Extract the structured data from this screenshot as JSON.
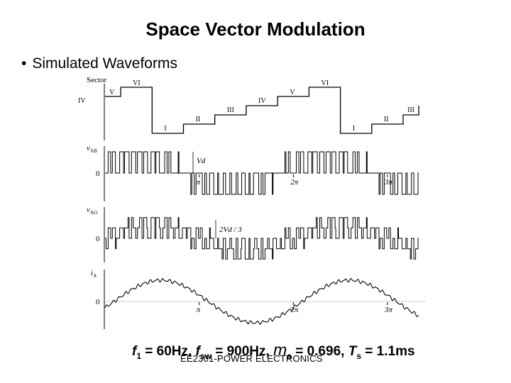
{
  "title": "Space Vector Modulation",
  "bullet": "Simulated Waveforms",
  "bullet_glyph": "•",
  "params": {
    "f1_label": "f",
    "f1_sub": "1",
    "f1_value": " = 60Hz, ",
    "fsw_label": "f",
    "fsw_sub": "sw",
    "fsw_value": " = 900Hz, ",
    "ma_label": "m",
    "ma_sub": "a",
    "ma_value": " = 0.696, ",
    "ts_label": "T",
    "ts_sub": "s",
    "ts_value": " = 1.1ms"
  },
  "footer": "EE2301-POWER ELECTRONICS",
  "chart_data": [
    {
      "type": "line",
      "title": "Sector",
      "ylabel": "Sector",
      "x_unit": "rad",
      "xlim": [
        0,
        10.47
      ],
      "sector_labels": [
        "V",
        "VI",
        "I",
        "II",
        "III",
        "IV",
        "V",
        "VI",
        "I",
        "II",
        "III",
        "IV"
      ],
      "x_breaks": [
        0,
        0.524,
        1.571,
        2.618,
        3.665,
        4.712,
        5.76,
        6.807,
        7.854,
        8.901,
        9.948,
        10.47
      ],
      "levels": [
        5,
        6,
        1,
        2,
        3,
        4,
        5,
        6,
        1,
        2,
        3,
        4
      ],
      "ylim": [
        0.5,
        6.5
      ]
    },
    {
      "type": "line",
      "ylabel": "vAB",
      "zero_label": "0",
      "annotation": "Vd",
      "xticks": [
        "π",
        "2π",
        "3π"
      ],
      "xtick_values": [
        3.1416,
        6.2832,
        9.4248
      ],
      "levels": [
        -1,
        0,
        1
      ],
      "description_series": "PWM line-to-line voltage, levels -Vd, 0, +Vd"
    },
    {
      "type": "line",
      "ylabel": "vAO",
      "zero_label": "0",
      "annotation": "2Vd / 3",
      "levels": [
        -0.667,
        -0.333,
        0,
        0.333,
        0.667
      ]
    },
    {
      "type": "line",
      "ylabel": "iA",
      "zero_label": "0",
      "xticks": [
        "π",
        "2π",
        "3π"
      ],
      "xtick_values": [
        3.1416,
        6.2832,
        9.4248
      ],
      "amplitude": 1,
      "phase_shift": -0.3,
      "ylim": [
        -1.3,
        1.3
      ]
    }
  ]
}
